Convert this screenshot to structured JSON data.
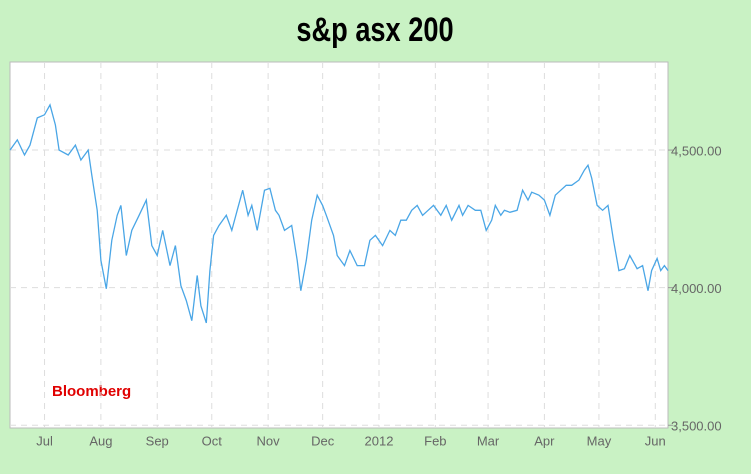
{
  "chart_data": {
    "type": "line",
    "title": "s&p asx 200",
    "annotation": "Bloomberg",
    "color": "#4aa6e6",
    "x": [
      -19,
      -15,
      -11,
      -8,
      -4,
      0,
      3,
      6,
      8,
      13,
      17,
      20,
      24,
      26,
      29,
      31,
      34,
      37,
      40,
      42,
      45,
      48,
      52,
      56,
      59,
      62,
      65,
      69,
      72,
      75,
      78,
      81,
      84,
      86,
      89,
      91,
      93,
      96,
      100,
      103,
      106,
      109,
      112,
      114,
      117,
      121,
      124,
      127,
      129,
      132,
      136,
      139,
      141,
      144,
      147,
      150,
      153,
      155,
      159,
      161,
      165,
      168,
      172,
      176,
      179,
      182,
      186,
      190,
      193,
      196,
      199,
      202,
      205,
      208,
      211,
      214,
      218,
      221,
      224,
      228,
      230,
      233,
      237,
      240,
      243,
      246,
      248,
      251,
      253,
      256,
      260,
      263,
      266,
      268,
      272,
      275,
      278,
      281,
      284,
      287,
      290,
      294,
      297,
      299,
      301,
      304,
      307,
      310,
      313,
      316,
      319,
      322,
      326,
      329,
      332,
      334,
      337,
      339,
      341,
      343
    ],
    "values": [
      4500,
      4537,
      4482,
      4518,
      4617,
      4628,
      4664,
      4591,
      4500,
      4482,
      4518,
      4464,
      4500,
      4409,
      4281,
      4099,
      3996,
      4172,
      4263,
      4299,
      4117,
      4208,
      4263,
      4318,
      4153,
      4117,
      4208,
      4080,
      4153,
      4007,
      3953,
      3880,
      4044,
      3934,
      3872,
      4062,
      4190,
      4226,
      4263,
      4208,
      4281,
      4354,
      4263,
      4299,
      4208,
      4354,
      4361,
      4281,
      4263,
      4208,
      4226,
      4099,
      3989,
      4099,
      4245,
      4336,
      4299,
      4263,
      4190,
      4117,
      4080,
      4135,
      4080,
      4080,
      4172,
      4190,
      4153,
      4208,
      4190,
      4245,
      4245,
      4281,
      4299,
      4263,
      4281,
      4299,
      4263,
      4299,
      4245,
      4299,
      4263,
      4299,
      4281,
      4281,
      4208,
      4245,
      4299,
      4263,
      4281,
      4274,
      4281,
      4354,
      4318,
      4347,
      4336,
      4318,
      4263,
      4336,
      4354,
      4372,
      4372,
      4391,
      4427,
      4445,
      4398,
      4299,
      4281,
      4299,
      4172,
      4062,
      4069,
      4117,
      4069,
      4080,
      3989,
      4062,
      4106,
      4062,
      4080,
      4062
    ],
    "xlim": [
      -19,
      343
    ],
    "xticks": [
      {
        "value": 0,
        "label": "Jul"
      },
      {
        "value": 31,
        "label": "Aug"
      },
      {
        "value": 62,
        "label": "Sep"
      },
      {
        "value": 92,
        "label": "Oct"
      },
      {
        "value": 123,
        "label": "Nov"
      },
      {
        "value": 153,
        "label": "Dec"
      },
      {
        "value": 184,
        "label": "2012"
      },
      {
        "value": 215,
        "label": "Feb"
      },
      {
        "value": 244,
        "label": "Mar"
      },
      {
        "value": 275,
        "label": "Apr"
      },
      {
        "value": 305,
        "label": "May"
      },
      {
        "value": 336,
        "label": "Jun"
      }
    ],
    "ylim": [
      3490,
      4820
    ],
    "yticks": [
      {
        "value": 3500,
        "label": "3,500.00"
      },
      {
        "value": 4000,
        "label": "4,000.00"
      },
      {
        "value": 4500,
        "label": "4,500.00"
      }
    ],
    "grid": true
  }
}
